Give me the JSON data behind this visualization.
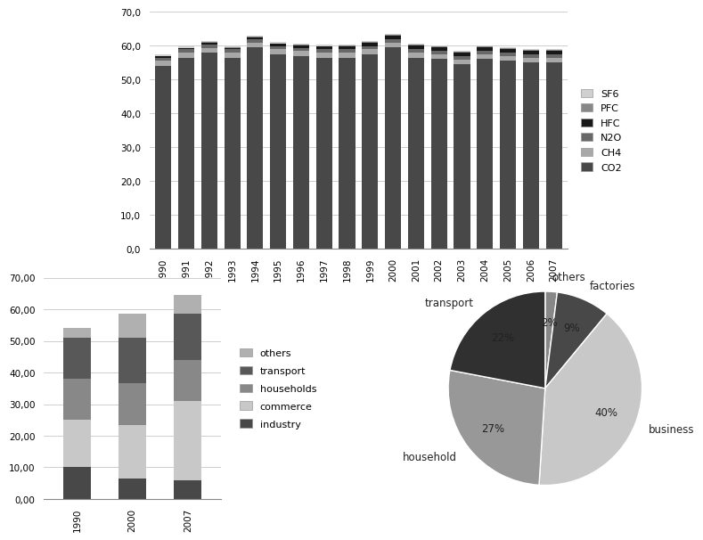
{
  "top_bar": {
    "years": [
      1990,
      1991,
      1992,
      1993,
      1994,
      1995,
      1996,
      1997,
      1998,
      1999,
      2000,
      2001,
      2002,
      2003,
      2004,
      2005,
      2006,
      2007
    ],
    "CO2": [
      54.0,
      56.5,
      58.0,
      56.5,
      59.5,
      57.5,
      57.0,
      56.5,
      56.5,
      57.5,
      59.5,
      56.5,
      56.0,
      54.5,
      56.0,
      55.5,
      55.0,
      55.0
    ],
    "CH4": [
      1.5,
      1.4,
      1.4,
      1.4,
      1.4,
      1.4,
      1.4,
      1.4,
      1.4,
      1.4,
      1.4,
      1.4,
      1.4,
      1.4,
      1.4,
      1.4,
      1.4,
      1.4
    ],
    "N2O": [
      1.0,
      1.0,
      1.0,
      1.0,
      1.0,
      1.0,
      1.0,
      1.0,
      1.0,
      1.0,
      1.0,
      1.0,
      1.0,
      1.0,
      1.0,
      1.0,
      1.0,
      1.0
    ],
    "HFC": [
      0.3,
      0.3,
      0.4,
      0.4,
      0.5,
      0.6,
      0.7,
      0.8,
      0.9,
      1.0,
      1.1,
      1.1,
      1.1,
      1.1,
      1.1,
      1.1,
      1.1,
      1.1
    ],
    "PFC": [
      0.2,
      0.2,
      0.2,
      0.2,
      0.2,
      0.2,
      0.2,
      0.2,
      0.2,
      0.2,
      0.2,
      0.2,
      0.2,
      0.2,
      0.2,
      0.2,
      0.2,
      0.2
    ],
    "SF6": [
      0.3,
      0.3,
      0.3,
      0.3,
      0.3,
      0.3,
      0.3,
      0.3,
      0.3,
      0.3,
      0.3,
      0.3,
      0.3,
      0.3,
      0.3,
      0.3,
      0.3,
      0.3
    ],
    "colors": {
      "CO2": "#484848",
      "CH4": "#a8a8a8",
      "N2O": "#686868",
      "HFC": "#181818",
      "PFC": "#888888",
      "SF6": "#d0d0d0"
    },
    "ylim": [
      0,
      70
    ],
    "yticks": [
      0,
      10,
      20,
      30,
      40,
      50,
      60,
      70
    ]
  },
  "bottom_left_bar": {
    "years": [
      "1990",
      "2000",
      "2007"
    ],
    "industry": [
      10.0,
      6.5,
      6.0
    ],
    "commerce": [
      15.0,
      17.0,
      25.0
    ],
    "households": [
      13.0,
      13.0,
      13.0
    ],
    "transport": [
      13.0,
      14.5,
      14.5
    ],
    "others": [
      3.0,
      7.5,
      6.0
    ],
    "colors": {
      "industry": "#484848",
      "commerce": "#c8c8c8",
      "households": "#888888",
      "transport": "#585858",
      "others": "#b0b0b0"
    },
    "ylim": [
      0,
      70
    ],
    "yticks": [
      0,
      10,
      20,
      30,
      40,
      50,
      60,
      70
    ]
  },
  "pie": {
    "labels": [
      "others",
      "factories",
      "business",
      "household",
      "transport"
    ],
    "values": [
      2,
      9,
      40,
      27,
      22
    ],
    "colors": [
      "#888888",
      "#484848",
      "#c8c8c8",
      "#989898",
      "#303030"
    ],
    "startangle": 90
  },
  "background_color": "#ffffff"
}
